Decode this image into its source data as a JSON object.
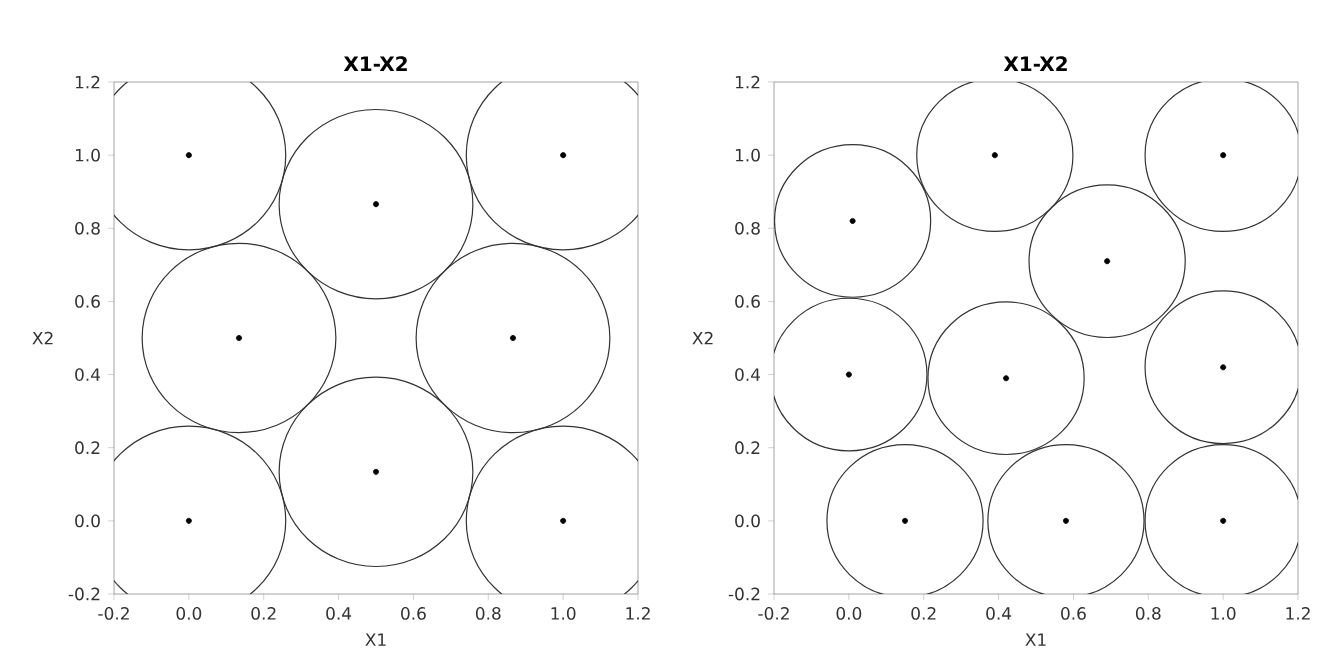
{
  "chart_data": [
    {
      "type": "bubble",
      "title": "X1-X2",
      "xlabel": "X1",
      "ylabel": "X2",
      "color": "#000000",
      "x": [
        0,
        0.5,
        1,
        0.134,
        0.866,
        0.5,
        0,
        1
      ],
      "values": [
        1,
        0.866,
        1,
        0.5,
        0.5,
        0.134,
        0,
        0
      ],
      "sizes": [
        1,
        1,
        1,
        1,
        1,
        1,
        1,
        1
      ],
      "xlim": [
        -0.2,
        1.2
      ],
      "ylim": [
        -0.2,
        1.2
      ],
      "xticks": [
        {
          "value": -0.2,
          "label": "-0.2"
        },
        {
          "value": 0,
          "label": "0.0"
        },
        {
          "value": 0.2,
          "label": "0.2"
        },
        {
          "value": 0.4,
          "label": "0.4"
        },
        {
          "value": 0.6,
          "label": "0.6"
        },
        {
          "value": 0.8,
          "label": "0.8"
        },
        {
          "value": 1,
          "label": "1.0"
        },
        {
          "value": 1.2,
          "label": "1.2"
        }
      ],
      "yticks": [
        {
          "value": -0.2,
          "label": "-0.2"
        },
        {
          "value": 0,
          "label": "0.0"
        },
        {
          "value": 0.2,
          "label": "0.2"
        },
        {
          "value": 0.4,
          "label": "0.4"
        },
        {
          "value": 0.6,
          "label": "0.6"
        },
        {
          "value": 0.8,
          "label": "0.8"
        },
        {
          "value": 1,
          "label": "1.0"
        },
        {
          "value": 1.2,
          "label": "1.2"
        }
      ]
    },
    {
      "type": "bubble",
      "title": "X1-X2",
      "xlabel": "X1",
      "ylabel": "X2",
      "color": "#000000",
      "x": [
        0.01,
        0.39,
        1,
        0.69,
        0,
        0.42,
        1,
        0.15,
        0.58,
        1
      ],
      "values": [
        0.82,
        1,
        1,
        0.71,
        0.4,
        0.39,
        0.42,
        0,
        0,
        0
      ],
      "sizes": [
        1,
        1,
        1,
        1,
        1,
        1,
        1,
        1,
        1,
        1
      ],
      "xlim": [
        -0.2,
        1.2
      ],
      "ylim": [
        -0.2,
        1.2
      ],
      "xticks": [
        {
          "value": -0.2,
          "label": "-0.2"
        },
        {
          "value": 0,
          "label": "0.0"
        },
        {
          "value": 0.2,
          "label": "0.2"
        },
        {
          "value": 0.4,
          "label": "0.4"
        },
        {
          "value": 0.6,
          "label": "0.6"
        },
        {
          "value": 0.8,
          "label": "0.8"
        },
        {
          "value": 1,
          "label": "1.0"
        },
        {
          "value": 1.2,
          "label": "1.2"
        }
      ],
      "yticks": [
        {
          "value": -0.2,
          "label": "-0.2"
        },
        {
          "value": 0,
          "label": "0.0"
        },
        {
          "value": 0.2,
          "label": "0.2"
        },
        {
          "value": 0.4,
          "label": "0.4"
        },
        {
          "value": 0.6,
          "label": "0.6"
        },
        {
          "value": 0.8,
          "label": "0.8"
        },
        {
          "value": 1,
          "label": "1.0"
        },
        {
          "value": 1.2,
          "label": "1.2"
        }
      ]
    }
  ]
}
